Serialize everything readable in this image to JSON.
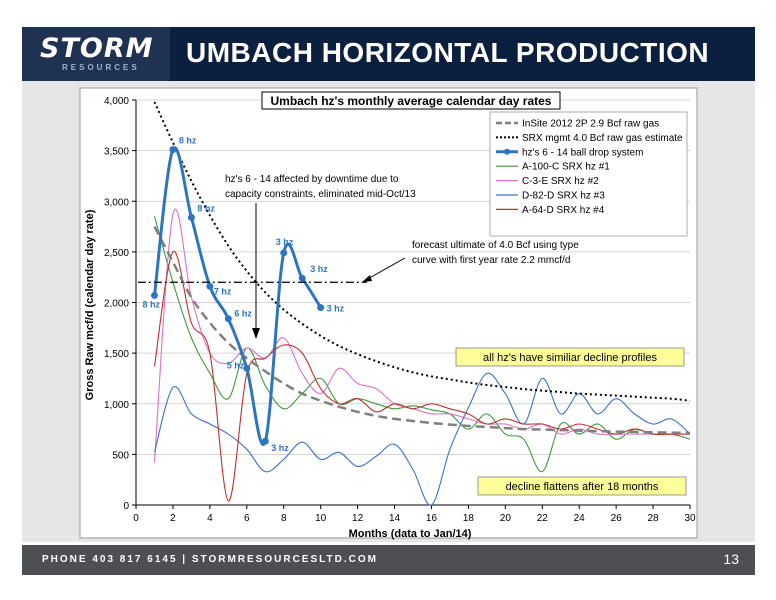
{
  "header": {
    "logo_main": "STORM",
    "logo_sub": "RESOURCES",
    "title": "UMBACH HORIZONTAL PRODUCTION"
  },
  "footer": {
    "contact": "PHONE 403 817 6145  |  STORMRESOURCESLTD.COM",
    "page_number": "13"
  },
  "colors": {
    "navy": "#0b1f3f",
    "srx_black": "#000000",
    "insite_gray": "#808080",
    "ball_drop": "#2e75c0",
    "a100": "#3a9a3a",
    "c3e": "#e070c8",
    "d82": "#3d6fd0",
    "a64": "#c0302a"
  },
  "chart_data": {
    "type": "line",
    "title": "Umbach hz's monthly average calendar day rates",
    "xlabel": "Months (data to Jan/14)",
    "ylabel": "Gross Raw mcf/d (calendar day rate)",
    "xlim": [
      0,
      30
    ],
    "ylim": [
      0,
      4000
    ],
    "xticks": [
      0,
      2,
      4,
      6,
      8,
      10,
      12,
      14,
      16,
      18,
      20,
      22,
      24,
      26,
      28,
      30
    ],
    "yticks": [
      0,
      500,
      1000,
      1500,
      2000,
      2500,
      3000,
      3500,
      4000
    ],
    "ytick_labels": [
      "0",
      "500",
      "1,000",
      "1,500",
      "2,000",
      "2,500",
      "3,000",
      "3,500",
      "4,000"
    ],
    "grid": true,
    "legend_position": "top-right",
    "series": [
      {
        "name": "InSite 2012 2P 2.9 Bcf raw gas",
        "style": "dashed",
        "color": "#808080",
        "x": [
          1,
          2,
          3,
          4,
          5,
          6,
          7,
          8,
          9,
          10,
          11,
          12,
          13,
          14,
          15,
          16,
          17,
          18,
          19,
          20,
          21,
          22,
          23,
          24,
          25,
          26,
          27,
          28,
          29,
          30
        ],
        "y": [
          2750,
          2400,
          2050,
          1800,
          1600,
          1450,
          1320,
          1200,
          1100,
          1030,
          970,
          920,
          880,
          850,
          830,
          810,
          795,
          780,
          770,
          760,
          750,
          745,
          740,
          735,
          730,
          725,
          722,
          718,
          715,
          712
        ]
      },
      {
        "name": "SRX mgmt 4.0 Bcf raw gas estimate",
        "style": "dotted",
        "color": "#000000",
        "x": [
          1,
          2,
          3,
          4,
          5,
          6,
          7,
          8,
          9,
          10,
          11,
          12,
          13,
          14,
          15,
          16,
          17,
          18,
          19,
          20,
          21,
          22,
          23,
          24,
          25,
          26,
          27,
          28,
          29,
          30
        ],
        "y": [
          3980,
          3580,
          3200,
          2860,
          2560,
          2310,
          2100,
          1930,
          1790,
          1670,
          1570,
          1490,
          1420,
          1360,
          1310,
          1270,
          1240,
          1210,
          1185,
          1165,
          1145,
          1130,
          1115,
          1100,
          1090,
          1080,
          1070,
          1060,
          1050,
          1030
        ]
      },
      {
        "name": "hz's 6 - 14 ball drop system",
        "style": "marker",
        "color": "#2e75c0",
        "x": [
          1,
          2,
          3,
          4,
          5,
          6,
          7,
          8,
          9,
          10
        ],
        "y": [
          2070,
          3510,
          2840,
          2160,
          1840,
          1350,
          630,
          2490,
          2240,
          1950
        ]
      },
      {
        "name": "A-100-C SRX hz #1",
        "style": "solid",
        "color": "#3a9a3a",
        "x": [
          1,
          2,
          3,
          4,
          5,
          6,
          7,
          8,
          9,
          10,
          11,
          12,
          13,
          14,
          15,
          16,
          17,
          18,
          19,
          20,
          21,
          22,
          23,
          24,
          25,
          26,
          27,
          28,
          29,
          30
        ],
        "y": [
          2850,
          2200,
          1650,
          1300,
          1050,
          1550,
          1180,
          950,
          1100,
          1250,
          1000,
          1050,
          1000,
          950,
          980,
          940,
          900,
          750,
          900,
          700,
          650,
          330,
          800,
          700,
          800,
          650,
          750,
          700,
          700,
          650
        ]
      },
      {
        "name": "C-3-E SRX hz #2",
        "style": "solid",
        "color": "#e070c8",
        "x": [
          1,
          2,
          3,
          4,
          5,
          6,
          7,
          8,
          9,
          10,
          11,
          12,
          13,
          14,
          15,
          16,
          17,
          18,
          19,
          20,
          21,
          22,
          23,
          24,
          25,
          26,
          27,
          28,
          29,
          30
        ],
        "y": [
          420,
          2870,
          2050,
          1500,
          1400,
          1550,
          1450,
          1650,
          1300,
          1100,
          1350,
          1200,
          1150,
          1000,
          950,
          900,
          900,
          850,
          800,
          800,
          750,
          800,
          700,
          750,
          700,
          700,
          700,
          700,
          700,
          700
        ]
      },
      {
        "name": "D-82-D SRX hz #3",
        "style": "solid",
        "color": "#3d6fd0",
        "x": [
          1,
          2,
          3,
          4,
          5,
          6,
          7,
          8,
          9,
          10,
          11,
          12,
          13,
          14,
          15,
          16,
          17,
          18,
          19,
          20,
          21,
          22,
          23,
          24,
          25,
          26,
          27,
          28,
          29,
          30
        ],
        "y": [
          520,
          1160,
          900,
          800,
          700,
          550,
          330,
          450,
          620,
          450,
          520,
          380,
          480,
          600,
          350,
          0,
          550,
          960,
          1300,
          1100,
          800,
          1250,
          900,
          1100,
          900,
          1050,
          900,
          800,
          850,
          700
        ]
      },
      {
        "name": "A-64-D SRX hz #4",
        "style": "solid",
        "color": "#c0302a",
        "x": [
          1,
          2,
          3,
          4,
          5,
          6,
          7,
          8,
          9,
          10,
          11,
          12,
          13,
          14,
          15,
          16,
          17,
          18,
          19,
          20,
          21,
          22,
          23,
          24,
          25,
          26,
          27,
          28,
          29,
          30
        ],
        "y": [
          1370,
          2500,
          1800,
          1500,
          40,
          1300,
          1450,
          1580,
          1500,
          1150,
          1000,
          1050,
          920,
          1000,
          950,
          1000,
          950,
          900,
          800,
          850,
          800,
          800,
          750,
          800,
          750,
          700,
          750,
          700,
          700,
          700
        ]
      }
    ],
    "reference_line": {
      "y": 2200,
      "x_from": 0.1,
      "x_to": 12.5
    },
    "point_labels": [
      {
        "x": 1,
        "y": 2070,
        "text": "8 hz"
      },
      {
        "x": 2,
        "y": 3510,
        "text": "8 hz"
      },
      {
        "x": 3,
        "y": 2840,
        "text": "8 hz"
      },
      {
        "x": 4,
        "y": 2160,
        "text": "7 hz"
      },
      {
        "x": 5,
        "y": 1840,
        "text": "6 hz"
      },
      {
        "x": 6,
        "y": 1350,
        "text": "5 hz"
      },
      {
        "x": 7,
        "y": 630,
        "text": "3 hz"
      },
      {
        "x": 8,
        "y": 2490,
        "text": "3 hz"
      },
      {
        "x": 9,
        "y": 2240,
        "text": "3 hz"
      },
      {
        "x": 10,
        "y": 1950,
        "text": "3 hz"
      }
    ],
    "annotations": {
      "downtime_line1": "hz's 6 - 14 affected by downtime due to",
      "downtime_line2": "capacity constraints, eliminated mid-Oct/13",
      "forecast_line1": "forecast ultimate of 4.0 Bcf using type",
      "forecast_line2": "curve with first year rate 2.2 mmcf/d",
      "decline_profiles": "all hz's have similiar decline profiles",
      "decline_flattens": "decline flattens after 18 months"
    }
  }
}
